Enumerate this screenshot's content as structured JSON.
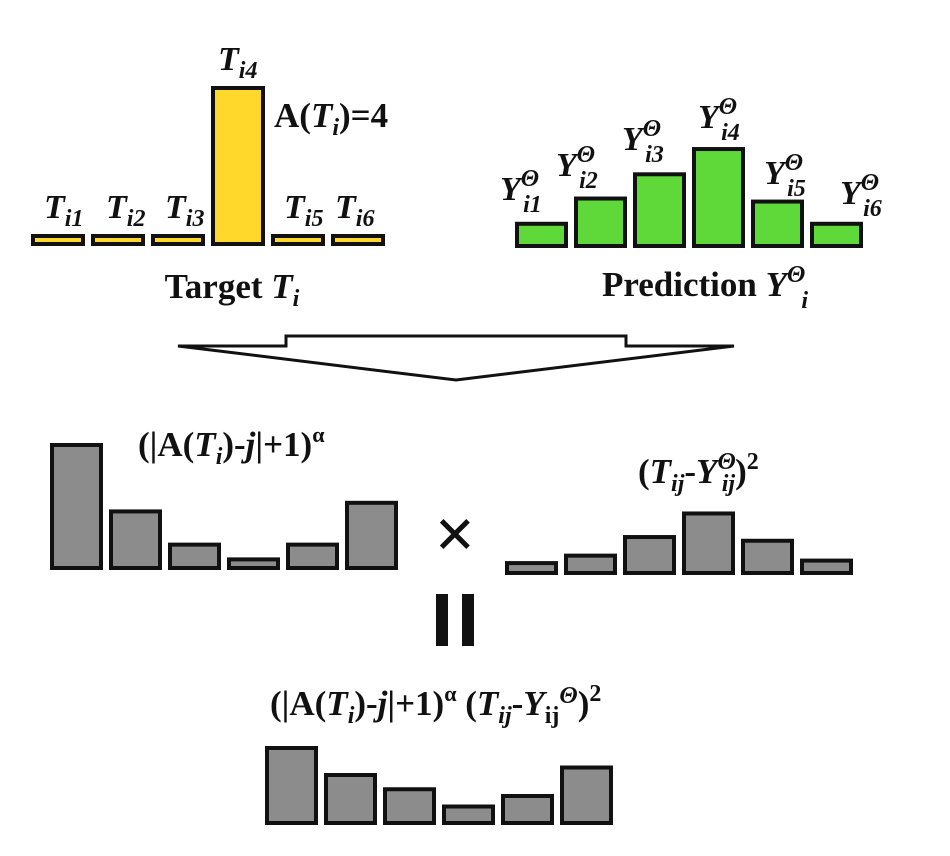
{
  "colors": {
    "target_bar": "#FFD82B",
    "prediction_bar": "#5FD83A",
    "gray_bar": "#8C8C8C",
    "outline": "#111111"
  },
  "target": {
    "caption": {
      "word": "Target",
      "var": "T",
      "sub": "i"
    },
    "annotation": {
      "prefix": "A(",
      "var": "T",
      "sub": "i",
      "suffix": ")=4"
    },
    "bar_labels": [
      {
        "var": "T",
        "sub": "i1"
      },
      {
        "var": "T",
        "sub": "i2"
      },
      {
        "var": "T",
        "sub": "i3"
      },
      {
        "var": "T",
        "sub": "i4"
      },
      {
        "var": "T",
        "sub": "i5"
      },
      {
        "var": "T",
        "sub": "i6"
      }
    ],
    "values": [
      0,
      0,
      0,
      1,
      0,
      0
    ]
  },
  "prediction": {
    "caption": {
      "word": "Prediction",
      "var": "Y",
      "sup": "Θ",
      "sub": "i"
    },
    "bar_labels": [
      {
        "var": "Y",
        "sup": "Θ",
        "sub": "i1"
      },
      {
        "var": "Y",
        "sup": "Θ",
        "sub": "i2"
      },
      {
        "var": "Y",
        "sup": "Θ",
        "sub": "i3"
      },
      {
        "var": "Y",
        "sup": "Θ",
        "sub": "i4"
      },
      {
        "var": "Y",
        "sup": "Θ",
        "sub": "i5"
      },
      {
        "var": "Y",
        "sup": "Θ",
        "sub": "i6"
      }
    ],
    "values": [
      0.22,
      0.47,
      0.71,
      0.96,
      0.44,
      0.22
    ]
  },
  "weight": {
    "formula": {
      "open": "(|A(",
      "var": "T",
      "sub": "i",
      "mid": ")-",
      "j": "j",
      "close": "|+1)",
      "exp": "α"
    },
    "values": [
      1.0,
      0.46,
      0.19,
      0.07,
      0.19,
      0.53
    ]
  },
  "squared_error": {
    "formula": {
      "open": "(",
      "t": "T",
      "t_sub": "ij",
      "minus": "-",
      "y": "Y",
      "y_sup": "Θ",
      "y_sub": "ij",
      "close": ")",
      "exp": "2"
    },
    "values": [
      0.08,
      0.14,
      0.29,
      0.48,
      0.26,
      0.1
    ]
  },
  "multiply_symbol": "×",
  "equals_symbol": "=",
  "product": {
    "formula": {
      "open": "(|A(",
      "var": "T",
      "sub": "i",
      "mid": ")-",
      "j": "j",
      "close": "|+1)",
      "exp": "α",
      "open2": " (",
      "t": "T",
      "t_sub": "ij",
      "minus": "-",
      "y": "Y",
      "y_sub": "ij",
      "y_sup": "Θ",
      "close2": ")",
      "exp2": "2"
    },
    "values": [
      1.0,
      0.64,
      0.45,
      0.22,
      0.36,
      0.74
    ]
  }
}
